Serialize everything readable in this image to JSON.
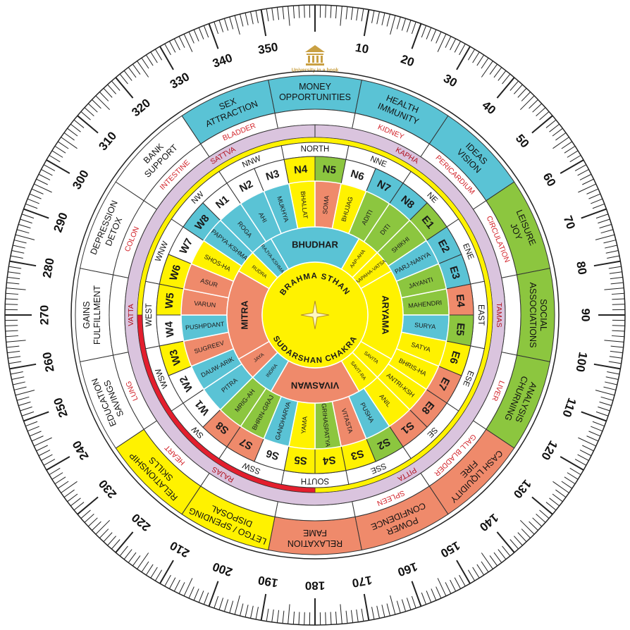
{
  "logo_text": "University in a book",
  "degree_labels": [
    10,
    20,
    30,
    40,
    50,
    60,
    70,
    80,
    90,
    100,
    110,
    120,
    130,
    140,
    150,
    160,
    170,
    180,
    190,
    200,
    210,
    220,
    230,
    240,
    250,
    260,
    270,
    280,
    290,
    300,
    310,
    320,
    330,
    340,
    350
  ],
  "zones": [
    {
      "aspect": [
        "MONEY",
        "OPPORTUNITIES"
      ],
      "color": "#5ac3d5"
    },
    {
      "aspect": [
        "HEALTH",
        "IMMUNITY"
      ],
      "organ": "KIDNEY",
      "color": "#5ac3d5"
    },
    {
      "aspect": [
        "IDEAS",
        "VISION"
      ],
      "organ": "PERICARDIUM",
      "color": "#5ac3d5"
    },
    {
      "aspect": [
        "LEISURE",
        "JOY"
      ],
      "organ": "CIRCULATION",
      "color": "#8cc63f"
    },
    {
      "aspect": [
        "SOCIAL",
        "ASSOCIATIONS"
      ],
      "color": "#8cc63f"
    },
    {
      "aspect": [
        "ANALYSIS",
        "CHURNING"
      ],
      "organ": "LIVER",
      "color": "#8cc63f"
    },
    {
      "aspect": [
        "CASH LIQUIDITY",
        "FIRE"
      ],
      "organ": "GALL BLADDER",
      "color": "#ef8a6b"
    },
    {
      "aspect": [
        "POWER",
        "CONFIDENCE"
      ],
      "organ": "SPLEEN",
      "color": "#ef8a6b"
    },
    {
      "aspect": [
        "RELAXATION",
        "FAME"
      ],
      "color": "#ef8a6b"
    },
    {
      "aspect": [
        "LETGO / SPENDING",
        "DISPOSAL"
      ],
      "color": "#fff200"
    },
    {
      "aspect": [
        "RELATIONSHIP",
        "SKILLS"
      ],
      "organ": "HEART",
      "color": "#fff200"
    },
    {
      "aspect": [
        "EDUCATION",
        "SAVINGS"
      ],
      "organ": "LUNG",
      "color": "#ffffff"
    },
    {
      "aspect": [
        "GAINS",
        "FULFILLMENT"
      ],
      "color": "#ffffff"
    },
    {
      "aspect": [
        "DEPRESSION",
        "DETOX"
      ],
      "organ": "COLON",
      "color": "#ffffff"
    },
    {
      "aspect": [
        "BANK",
        "SUPPORT"
      ],
      "organ": "INTESTINE",
      "color": "#ffffff"
    },
    {
      "aspect": [
        "SEX",
        "ATTRACTION"
      ],
      "organ": "BLADDER",
      "color": "#5ac3d5"
    }
  ],
  "gunas": [
    "SATTVA",
    "KAPHA",
    "TAMAS",
    "PITTA",
    "RAJAS",
    "VATTA"
  ],
  "directions": [
    "NORTH",
    "NNE",
    "NE",
    "ENE",
    "EAST",
    "ESE",
    "SE",
    "SSE",
    "SOUTH",
    "SSW",
    "SW",
    "WSW",
    "WEST",
    "WNW",
    "NW",
    "NNW"
  ],
  "padas": [
    {
      "code": "N1",
      "code_color": "#ffffff",
      "name": "ROGA",
      "name_color": "#5ac3d5"
    },
    {
      "code": "N2",
      "code_color": "#ffffff",
      "name": "AHI",
      "name_color": "#5ac3d5"
    },
    {
      "code": "N3",
      "code_color": "#ffffff",
      "name": "MUKHYA",
      "name_color": "#5ac3d5"
    },
    {
      "code": "N4",
      "code_color": "#fff200",
      "name": "BHALLAT",
      "name_color": "#fff200"
    },
    {
      "code": "N5",
      "code_color": "#8cc63f",
      "name": "SOMA",
      "name_color": "#ef8a6b"
    },
    {
      "code": "N6",
      "code_color": "#ffffff",
      "name": "BHUJAG",
      "name_color": "#fff200"
    },
    {
      "code": "N7",
      "code_color": "#5ac3d5",
      "name": "ADITI",
      "name_color": "#8cc63f"
    },
    {
      "code": "N8",
      "code_color": "#5ac3d5",
      "name": "DITI",
      "name_color": "#8cc63f"
    },
    {
      "code": "E1",
      "code_color": "#8cc63f",
      "name": "SHIKHI",
      "name_color": "#8cc63f"
    },
    {
      "code": "E2",
      "code_color": "#5ac3d5",
      "name": "PARJ-NANYA",
      "name_color": "#5ac3d5"
    },
    {
      "code": "E3",
      "code_color": "#5ac3d5",
      "name": "JAYANTI",
      "name_color": "#8cc63f"
    },
    {
      "code": "E4",
      "code_color": "#ef8a6b",
      "name": "MAHENDRI",
      "name_color": "#8cc63f"
    },
    {
      "code": "E5",
      "code_color": "#8cc63f",
      "name": "SURYA",
      "name_color": "#5ac3d5"
    },
    {
      "code": "E6",
      "code_color": "#fff200",
      "name": "SATYA",
      "name_color": "#fff200"
    },
    {
      "code": "E7",
      "code_color": "#ef8a6b",
      "name": "BHRIS-HA",
      "name_color": "#fff200"
    },
    {
      "code": "E8",
      "code_color": "#ef8a6b",
      "name": "ANTRI-KSH",
      "name_color": "#fff200"
    },
    {
      "code": "S1",
      "code_color": "#ef8a6b",
      "name": "ANIL",
      "name_color": "#fff200"
    },
    {
      "code": "S2",
      "code_color": "#8cc63f",
      "name": "PUSHA",
      "name_color": "#5ac3d5"
    },
    {
      "code": "S3",
      "code_color": "#fff200",
      "name": "VITASTA",
      "name_color": "#ef8a6b"
    },
    {
      "code": "S4",
      "code_color": "#fff200",
      "name": "GRIHASPATYA",
      "name_color": "#8cc63f"
    },
    {
      "code": "S5",
      "code_color": "#fff200",
      "name": "YAMA",
      "name_color": "#fff200"
    },
    {
      "code": "S6",
      "code_color": "#ffffff",
      "name": "GANDHARVA",
      "name_color": "#5ac3d5"
    },
    {
      "code": "S7",
      "code_color": "#ef8a6b",
      "name": "BHRIN-GRAJ",
      "name_color": "#8cc63f"
    },
    {
      "code": "S8",
      "code_color": "#ef8a6b",
      "name": "MRIG-AH",
      "name_color": "#8cc63f"
    },
    {
      "code": "W1",
      "code_color": "#ffffff",
      "name": "PITRA",
      "name_color": "#5ac3d5"
    },
    {
      "code": "W2",
      "code_color": "#ffffff",
      "name": "DAUW-ARIK",
      "name_color": "#5ac3d5"
    },
    {
      "code": "W3",
      "code_color": "#fff200",
      "name": "SUGREEV",
      "name_color": "#ef8a6b"
    },
    {
      "code": "W4",
      "code_color": "#ffffff",
      "name": "PUSHPDANT",
      "name_color": "#5ac3d5"
    },
    {
      "code": "W5",
      "code_color": "#fff200",
      "name": "VARUN",
      "name_color": "#ef8a6b"
    },
    {
      "code": "W6",
      "code_color": "#fff200",
      "name": "ASUR",
      "name_color": "#ef8a6b"
    },
    {
      "code": "W7",
      "code_color": "#ffffff",
      "name": "SHOS-HA",
      "name_color": "#fff200"
    },
    {
      "code": "W8",
      "code_color": "#5ac3d5",
      "name": "PAPYA-KSHMA",
      "name_color": "#5ac3d5"
    }
  ],
  "inner": [
    {
      "name": "AAP-AHA",
      "color": "#fff200"
    },
    {
      "name": "AAPAHA-VATSA",
      "color": "#fff200"
    },
    {
      "name": "SAVITA",
      "color": "#fff200"
    },
    {
      "name": "SAVIT-RA",
      "color": "#fff200"
    },
    {
      "name": "INDRA",
      "color": "#5ac3d5"
    },
    {
      "name": "JAYA",
      "color": "#ef8a6b"
    },
    {
      "name": "RUDRA",
      "color": "#fff200"
    },
    {
      "name": "RAJYA-KSHMA",
      "color": "#5ac3d5"
    }
  ],
  "middle": [
    {
      "name": "BHUDHAR",
      "color": "#5ac3d5"
    },
    {
      "name": "ARYAMA",
      "color": "#fff200"
    },
    {
      "name": "VIVASWAN",
      "color": "#ef8a6b"
    },
    {
      "name": "MITRA",
      "color": "#ef8a6b"
    }
  ],
  "center": {
    "top": "BRAHMA STHAN",
    "bottom": "SUDARSHAN CHAKRA",
    "color": "#fff200"
  }
}
